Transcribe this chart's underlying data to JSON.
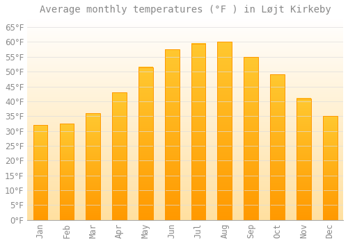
{
  "title": "Average monthly temperatures (°F ) in Løjt Kirkeby",
  "months": [
    "Jan",
    "Feb",
    "Mar",
    "Apr",
    "May",
    "Jun",
    "Jul",
    "Aug",
    "Sep",
    "Oct",
    "Nov",
    "Dec"
  ],
  "values": [
    32,
    32.5,
    36,
    43,
    51.5,
    57.5,
    59.5,
    60,
    55,
    49,
    41,
    35
  ],
  "bar_color_top": "#FFC830",
  "bar_color_bottom": "#FF9900",
  "bg_color_top": "#FFFFFF",
  "bg_color_bottom": "#FFE0A0",
  "grid_color": "#DDDDDD",
  "text_color": "#888888",
  "axis_color": "#AAAAAA",
  "ylim": [
    0,
    68
  ],
  "yticks": [
    0,
    5,
    10,
    15,
    20,
    25,
    30,
    35,
    40,
    45,
    50,
    55,
    60,
    65
  ],
  "title_fontsize": 10,
  "tick_fontsize": 8.5,
  "bar_width": 0.55
}
